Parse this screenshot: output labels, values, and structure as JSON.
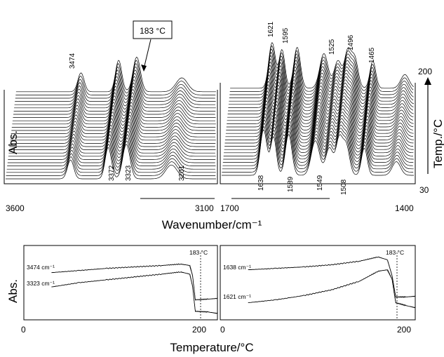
{
  "chart_data": [
    {
      "type": "line",
      "panel": "top-left",
      "xlabel": "Wavenumber/cm⁻¹",
      "ylabel": "Abs.",
      "x_ticks": [
        "3600",
        "3100"
      ],
      "xlim": [
        3650,
        3080
      ],
      "peaks_top": [
        "3474"
      ],
      "peaks_bottom": [
        "3372",
        "3323",
        "3201"
      ],
      "annotation": "183 °C",
      "peaks": [
        {
          "x": 3474,
          "height": 0.3,
          "width": 12
        },
        {
          "x": 3372,
          "height": 0.5,
          "width": 12
        },
        {
          "x": 3323,
          "height": 0.55,
          "width": 14
        },
        {
          "x": 3201,
          "height": 0.22,
          "width": 22
        }
      ]
    },
    {
      "type": "line",
      "panel": "top-right",
      "xlabel": "Wavenumber/cm⁻¹",
      "ylabel": "Temp./°C",
      "x_ticks": [
        "1700",
        "1400"
      ],
      "xlim": [
        1710,
        1380
      ],
      "y_ticks": [
        "200",
        "30"
      ],
      "ylim": [
        30,
        200
      ],
      "peaks_top": [
        "1621",
        "1595",
        "1525",
        "1496",
        "1465"
      ],
      "peaks_bottom": [
        "1638",
        "1589",
        "1549",
        "1508"
      ],
      "peaks": [
        {
          "x": 1638,
          "height": 0.5,
          "width": 8
        },
        {
          "x": 1621,
          "height": 0.42,
          "width": 7
        },
        {
          "x": 1595,
          "height": 0.45,
          "width": 8
        },
        {
          "x": 1549,
          "height": 0.38,
          "width": 10
        },
        {
          "x": 1525,
          "height": 0.3,
          "width": 9
        },
        {
          "x": 1508,
          "height": 0.4,
          "width": 8
        },
        {
          "x": 1496,
          "height": 0.32,
          "width": 8
        },
        {
          "x": 1465,
          "height": 0.3,
          "width": 7
        },
        {
          "x": 1410,
          "height": 0.15,
          "width": 10
        }
      ]
    },
    {
      "type": "line",
      "panel": "bottom-left",
      "xlabel": "Temperature/°C",
      "ylabel": "Abs.",
      "x_ticks": [
        "0",
        "200"
      ],
      "xlim": [
        0,
        210
      ],
      "annotation": "183 °C",
      "series": [
        {
          "name": "3474 cm⁻¹",
          "x": [
            30,
            60,
            90,
            120,
            150,
            170,
            180,
            183,
            186,
            200,
            210
          ],
          "y": [
            0.64,
            0.67,
            0.7,
            0.72,
            0.74,
            0.76,
            0.74,
            0.6,
            0.26,
            0.27,
            0.28
          ]
        },
        {
          "name": "3323 cm⁻¹",
          "x": [
            30,
            60,
            90,
            120,
            150,
            170,
            180,
            183,
            186,
            200,
            210
          ],
          "y": [
            0.44,
            0.5,
            0.54,
            0.58,
            0.62,
            0.65,
            0.62,
            0.45,
            0.1,
            0.09,
            0.07
          ]
        }
      ]
    },
    {
      "type": "line",
      "panel": "bottom-right",
      "xlabel": "Temperature/°C",
      "x_ticks": [
        "0",
        "200"
      ],
      "xlim": [
        0,
        210
      ],
      "annotation": "183 °C",
      "series": [
        {
          "name": "1638 cm⁻¹",
          "x": [
            30,
            60,
            90,
            120,
            150,
            170,
            180,
            185,
            189,
            200,
            210
          ],
          "y": [
            0.68,
            0.7,
            0.72,
            0.75,
            0.8,
            0.86,
            0.82,
            0.6,
            0.3,
            0.3,
            0.31
          ]
        },
        {
          "name": "1621 cm⁻¹",
          "x": [
            30,
            60,
            90,
            120,
            150,
            170,
            180,
            185,
            189,
            200,
            210
          ],
          "y": [
            0.22,
            0.26,
            0.32,
            0.4,
            0.52,
            0.66,
            0.68,
            0.55,
            0.22,
            0.18,
            0.15
          ]
        }
      ]
    }
  ]
}
